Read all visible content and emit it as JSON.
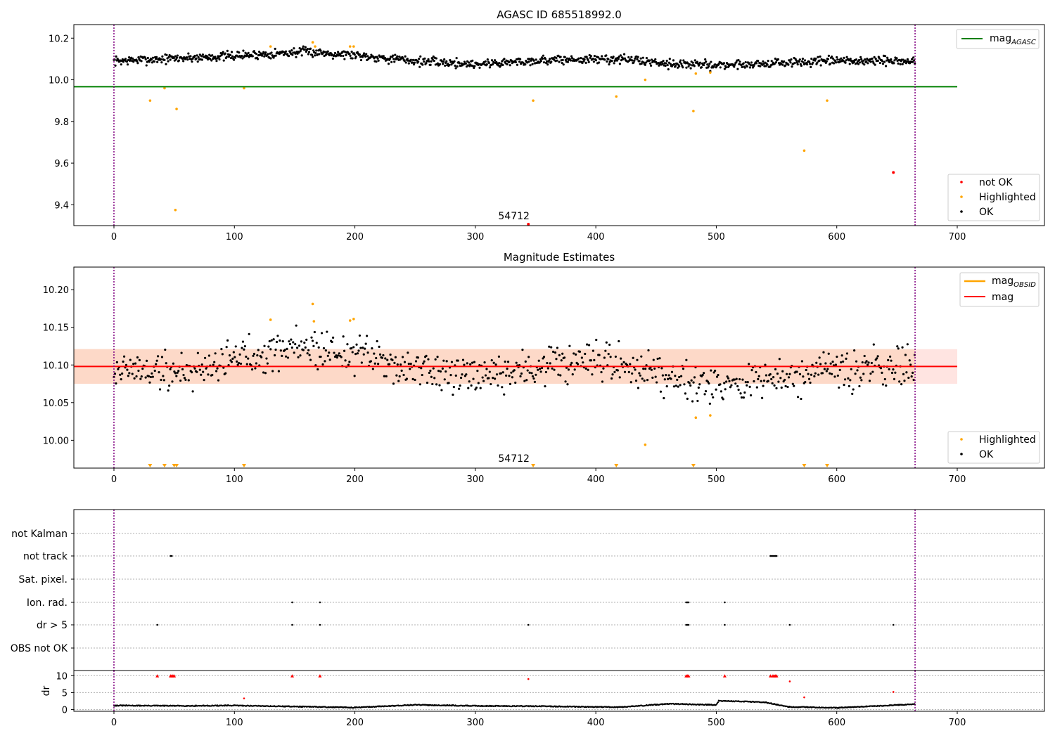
{
  "chart_data": [
    {
      "type": "scatter",
      "title": "AGASC ID 685518992.0",
      "xlim": [
        -33,
        770
      ],
      "ylim": [
        9.3,
        10.265
      ],
      "xticks": [
        "0",
        "100",
        "200",
        "300",
        "400",
        "500",
        "600",
        "700"
      ],
      "yticks": [
        "9.4",
        "9.6",
        "9.8",
        "10.0",
        "10.2"
      ],
      "vlines": [
        0,
        665
      ],
      "hline": {
        "name": "mag_AGASC",
        "y": 9.967,
        "x_range": [
          -33,
          700
        ],
        "color": "#008000"
      },
      "annotation": "54712",
      "annotation_pos": {
        "x": 332,
        "y": 9.3
      },
      "legend_top": [
        {
          "label": "mag",
          "sub": "AGASC",
          "color": "#008000"
        }
      ],
      "legend_bottom": [
        {
          "label": "not OK",
          "color": "#ff0000"
        },
        {
          "label": "Highlighted",
          "color": "#ffa500"
        },
        {
          "label": "OK",
          "color": "#000000"
        }
      ],
      "series": [
        {
          "name": "OK",
          "color": "#000000",
          "band": {
            "x": [
              0,
              665
            ],
            "trend": [
              [
                0,
                10.09
              ],
              [
                100,
                10.115
              ],
              [
                160,
                10.135
              ],
              [
                200,
                10.12
              ],
              [
                250,
                10.09
              ],
              [
                300,
                10.075
              ],
              [
                360,
                10.095
              ],
              [
                420,
                10.1
              ],
              [
                470,
                10.075
              ],
              [
                500,
                10.07
              ],
              [
                550,
                10.08
              ],
              [
                600,
                10.09
              ],
              [
                665,
                10.09
              ]
            ],
            "sigma": 0.018
          }
        },
        {
          "name": "Highlighted",
          "color": "#ffa500",
          "points": [
            [
              30,
              9.9
            ],
            [
              42,
              9.96
            ],
            [
              52,
              9.86
            ],
            [
              51,
              9.375
            ],
            [
              108,
              9.96
            ],
            [
              130,
              10.16
            ],
            [
              165,
              10.18
            ],
            [
              167,
              10.16
            ],
            [
              196,
              10.16
            ],
            [
              199,
              10.16
            ],
            [
              348,
              9.9
            ],
            [
              417,
              9.92
            ],
            [
              441,
              10.0
            ],
            [
              481,
              9.85
            ],
            [
              483,
              10.03
            ],
            [
              495,
              10.035
            ],
            [
              573,
              9.66
            ],
            [
              592,
              9.9
            ]
          ]
        },
        {
          "name": "not OK",
          "color": "#ff0000",
          "points": [
            [
              647,
              9.555
            ],
            [
              344,
              9.3
            ]
          ]
        }
      ]
    },
    {
      "type": "scatter",
      "title": "Magnitude Estimates",
      "xlim": [
        -33,
        770
      ],
      "ylim": [
        9.963,
        10.23
      ],
      "xticks": [
        "0",
        "100",
        "200",
        "300",
        "400",
        "500",
        "600",
        "700"
      ],
      "yticks": [
        "10.00",
        "10.05",
        "10.10",
        "10.15",
        "10.20"
      ],
      "vlines": [
        0,
        665
      ],
      "mean_mag": 10.098,
      "band": [
        10.075,
        10.121
      ],
      "annotation": "54712",
      "annotation_pos": {
        "x": 332,
        "y": 9.966
      },
      "legend_top": [
        {
          "label": "mag",
          "sub": "OBSID",
          "color": "#ffa500"
        },
        {
          "label": "mag",
          "sub": "",
          "color": "#ff0000"
        }
      ],
      "legend_bottom": [
        {
          "label": "Highlighted",
          "color": "#ffa500"
        },
        {
          "label": "OK",
          "color": "#000000"
        }
      ],
      "series": [
        {
          "name": "OK",
          "color": "#000000",
          "band": {
            "x": [
              0,
              665
            ],
            "trend": [
              [
                0,
                10.095
              ],
              [
                60,
                10.09
              ],
              [
                100,
                10.11
              ],
              [
                150,
                10.125
              ],
              [
                200,
                10.115
              ],
              [
                250,
                10.095
              ],
              [
                300,
                10.08
              ],
              [
                360,
                10.1
              ],
              [
                420,
                10.1
              ],
              [
                470,
                10.085
              ],
              [
                500,
                10.075
              ],
              [
                550,
                10.08
              ],
              [
                600,
                10.09
              ],
              [
                665,
                10.1
              ]
            ],
            "sigma": 0.02
          }
        },
        {
          "name": "Highlighted",
          "color": "#ffa500",
          "points": [
            [
              130,
              10.16
            ],
            [
              166,
              10.158
            ],
            [
              165,
              10.181
            ],
            [
              196,
              10.159
            ],
            [
              199,
              10.161
            ],
            [
              441,
              9.994
            ],
            [
              483,
              10.03
            ],
            [
              495,
              10.033
            ]
          ]
        },
        {
          "name": "Highlighted (below axis)",
          "color": "#ffa500",
          "points": [
            [
              30,
              9.964
            ],
            [
              42,
              9.964
            ],
            [
              50,
              9.964
            ],
            [
              52,
              9.964
            ],
            [
              108,
              9.964
            ],
            [
              348,
              9.964
            ],
            [
              417,
              9.964
            ],
            [
              481,
              9.964
            ],
            [
              573,
              9.964
            ],
            [
              592,
              9.964
            ]
          ]
        }
      ]
    },
    {
      "type": "scatter",
      "title": "",
      "xlim": [
        -33,
        770
      ],
      "xticks": [
        "0",
        "100",
        "200",
        "300",
        "400",
        "500",
        "600",
        "700"
      ],
      "vlines": [
        0,
        665
      ],
      "categories": [
        "not Kalman",
        "not track",
        "Sat. pixel.",
        "Ion. rad.",
        "dr > 5",
        "OBS not OK"
      ],
      "flags": {
        "not track": [
          47,
          48,
          545,
          546,
          547,
          548,
          549,
          550
        ],
        "Ion. rad.": [
          148,
          171,
          475,
          476,
          477,
          507
        ],
        "dr > 5": [
          36,
          148,
          171,
          344,
          475,
          476,
          477,
          507,
          561,
          647
        ]
      },
      "dr": {
        "ylabel": "dr",
        "yticks": [
          "0",
          "5",
          "10"
        ],
        "ylim": [
          -0.5,
          11.5
        ],
        "baseline": [
          [
            0,
            1.2
          ],
          [
            60,
            1.1
          ],
          [
            100,
            1.2
          ],
          [
            200,
            0.6
          ],
          [
            250,
            1.4
          ],
          [
            300,
            1.1
          ],
          [
            350,
            1.0
          ],
          [
            420,
            0.7
          ],
          [
            460,
            1.7
          ],
          [
            500,
            1.4
          ],
          [
            502,
            2.6
          ],
          [
            540,
            2.2
          ],
          [
            560,
            0.8
          ],
          [
            600,
            0.5
          ],
          [
            665,
            1.6
          ]
        ],
        "high_red": [
          36,
          47,
          48,
          49,
          50,
          148,
          171,
          475,
          476,
          477,
          507,
          545,
          547,
          548,
          549,
          550
        ],
        "other_red": [
          [
            108,
            3.3
          ],
          [
            344,
            9.0
          ],
          [
            561,
            8.3
          ],
          [
            573,
            3.6
          ],
          [
            647,
            5.2
          ]
        ]
      }
    }
  ]
}
